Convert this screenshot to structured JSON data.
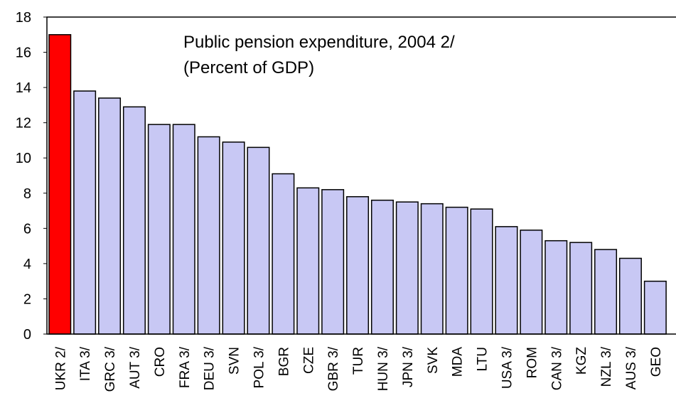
{
  "chart_data": {
    "type": "bar",
    "title": "Public pension expenditure, 2004 2/",
    "subtitle": "(Percent of GDP)",
    "xlabel": "",
    "ylabel": "",
    "ylim": [
      0,
      18
    ],
    "yticks": [
      0,
      2,
      4,
      6,
      8,
      10,
      12,
      14,
      16,
      18
    ],
    "grid": false,
    "categories": [
      "UKR 2/",
      "ITA 3/",
      "GRC 3/",
      "AUT 3/",
      "CRO",
      "FRA 3/",
      "DEU 3/",
      "SVN",
      "POL 3/",
      "BGR",
      "CZE",
      "GBR 3/",
      "TUR",
      "HUN 3/",
      "JPN 3/",
      "SVK",
      "MDA",
      "LTU",
      "USA 3/",
      "ROM",
      "CAN 3/",
      "KGZ",
      "NZL 3/",
      "AUS 3/",
      "GEO"
    ],
    "values": [
      17.0,
      13.8,
      13.4,
      12.9,
      11.9,
      11.9,
      11.2,
      10.9,
      10.6,
      9.1,
      8.3,
      8.2,
      7.8,
      7.6,
      7.5,
      7.4,
      7.2,
      7.1,
      6.1,
      5.9,
      5.3,
      5.2,
      4.8,
      4.3,
      3.0
    ],
    "highlight_index": 0,
    "colors": {
      "highlight": "#ff0000",
      "bar": "#c8c8f4",
      "outline": "#000000"
    }
  }
}
